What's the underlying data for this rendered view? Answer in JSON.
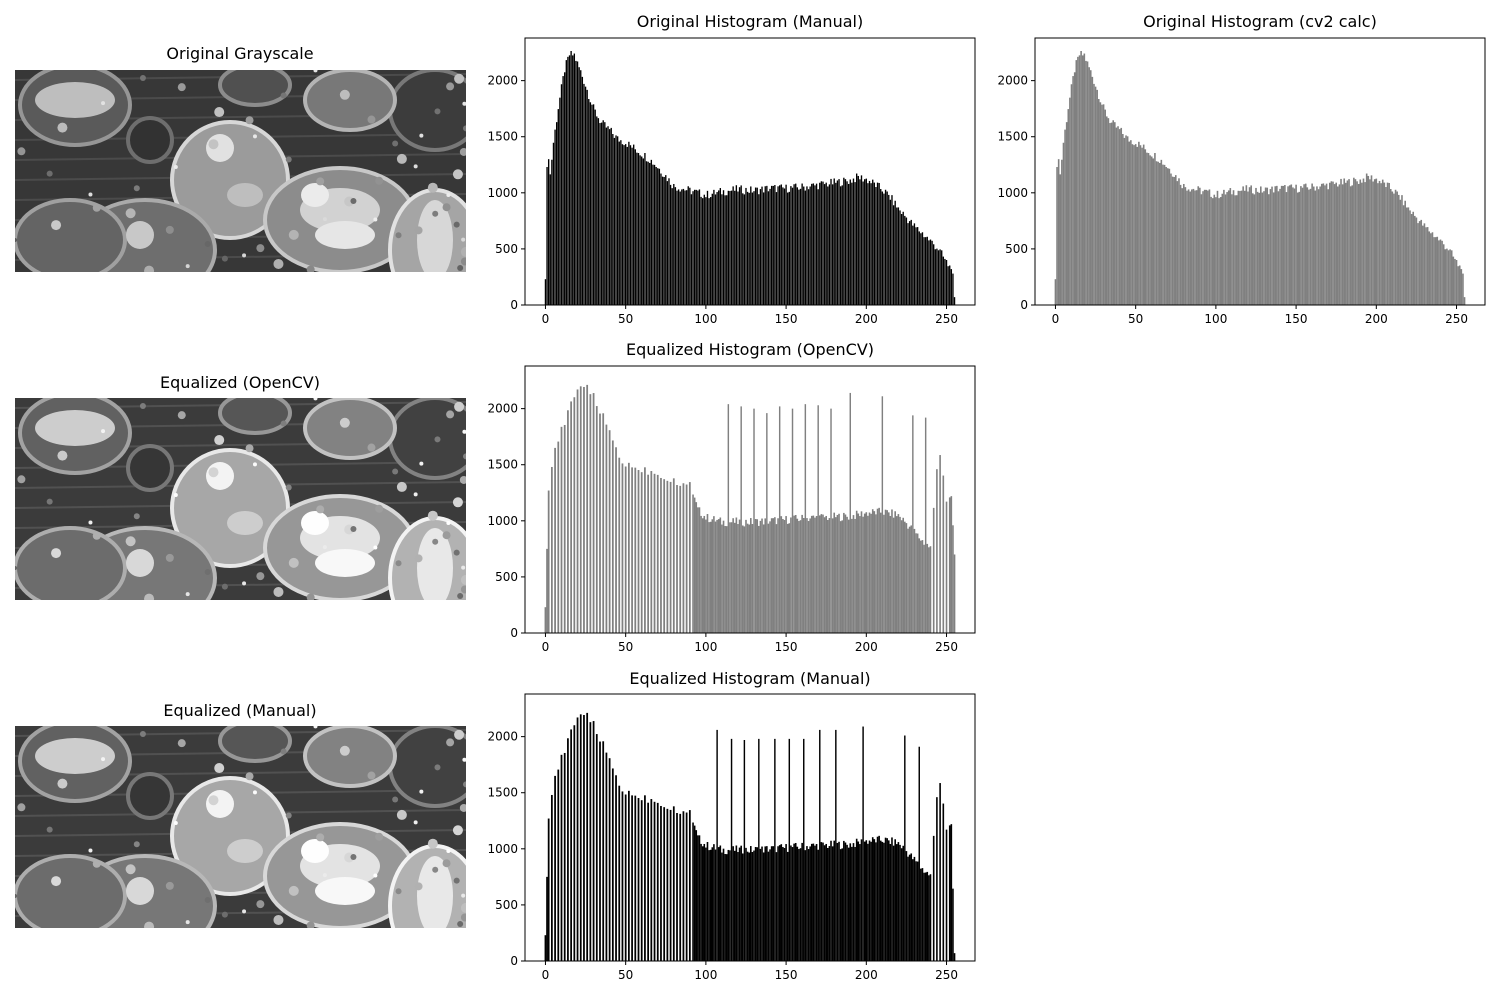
{
  "figure": {
    "images": [
      {
        "title": "Original Grayscale",
        "brightness": 1.0
      },
      {
        "title": "Equalized (OpenCV)",
        "brightness": 1.08
      },
      {
        "title": "Equalized (Manual)",
        "brightness": 1.08
      }
    ]
  },
  "chart_data": [
    {
      "type": "bar",
      "title": "Original Histogram (Manual)",
      "style": "separated-bars",
      "color": "#000000",
      "profile": "original",
      "x_range": [
        0,
        255
      ],
      "xlim": [
        -12.75,
        267.75
      ],
      "ylim": [
        0,
        2380
      ],
      "xticks": [
        "0",
        "50",
        "100",
        "150",
        "200",
        "250"
      ],
      "yticks": [
        "0",
        "500",
        "1000",
        "1500",
        "2000"
      ],
      "anchors": [
        [
          0,
          230
        ],
        [
          1,
          1230
        ],
        [
          2,
          1300
        ],
        [
          3,
          1160
        ],
        [
          5,
          1450
        ],
        [
          8,
          1760
        ],
        [
          12,
          2100
        ],
        [
          15,
          2230
        ],
        [
          18,
          2230
        ],
        [
          20,
          2150
        ],
        [
          22,
          2080
        ],
        [
          25,
          1960
        ],
        [
          30,
          1750
        ],
        [
          35,
          1620
        ],
        [
          40,
          1560
        ],
        [
          45,
          1480
        ],
        [
          50,
          1450
        ],
        [
          55,
          1400
        ],
        [
          60,
          1350
        ],
        [
          65,
          1300
        ],
        [
          70,
          1230
        ],
        [
          75,
          1150
        ],
        [
          80,
          1060
        ],
        [
          85,
          1040
        ],
        [
          90,
          1020
        ],
        [
          95,
          1000
        ],
        [
          100,
          980
        ],
        [
          110,
          1010
        ],
        [
          120,
          1030
        ],
        [
          130,
          1020
        ],
        [
          140,
          1040
        ],
        [
          150,
          1040
        ],
        [
          160,
          1050
        ],
        [
          170,
          1070
        ],
        [
          180,
          1090
        ],
        [
          190,
          1110
        ],
        [
          195,
          1140
        ],
        [
          200,
          1120
        ],
        [
          205,
          1080
        ],
        [
          210,
          1030
        ],
        [
          215,
          960
        ],
        [
          220,
          860
        ],
        [
          225,
          780
        ],
        [
          230,
          700
        ],
        [
          235,
          640
        ],
        [
          240,
          570
        ],
        [
          245,
          500
        ],
        [
          250,
          380
        ],
        [
          253,
          320
        ],
        [
          254,
          280
        ],
        [
          255,
          70
        ]
      ]
    },
    {
      "type": "bar",
      "title": "Original Histogram (cv2 calc)",
      "style": "filled",
      "color": "#808080",
      "profile": "original",
      "x_range": [
        0,
        255
      ],
      "xlim": [
        -12.75,
        267.75
      ],
      "ylim": [
        0,
        2380
      ],
      "xticks": [
        "0",
        "50",
        "100",
        "150",
        "200",
        "250"
      ],
      "yticks": [
        "0",
        "500",
        "1000",
        "1500",
        "2000"
      ],
      "anchors": [
        [
          0,
          230
        ],
        [
          1,
          1230
        ],
        [
          2,
          1300
        ],
        [
          3,
          1160
        ],
        [
          5,
          1450
        ],
        [
          8,
          1760
        ],
        [
          12,
          2100
        ],
        [
          15,
          2230
        ],
        [
          18,
          2230
        ],
        [
          20,
          2150
        ],
        [
          22,
          2080
        ],
        [
          25,
          1960
        ],
        [
          30,
          1750
        ],
        [
          35,
          1620
        ],
        [
          40,
          1560
        ],
        [
          45,
          1480
        ],
        [
          50,
          1450
        ],
        [
          55,
          1400
        ],
        [
          60,
          1350
        ],
        [
          65,
          1300
        ],
        [
          70,
          1230
        ],
        [
          75,
          1150
        ],
        [
          80,
          1060
        ],
        [
          85,
          1040
        ],
        [
          90,
          1020
        ],
        [
          95,
          1000
        ],
        [
          100,
          980
        ],
        [
          110,
          1010
        ],
        [
          120,
          1030
        ],
        [
          130,
          1020
        ],
        [
          140,
          1040
        ],
        [
          150,
          1040
        ],
        [
          160,
          1050
        ],
        [
          170,
          1070
        ],
        [
          180,
          1090
        ],
        [
          190,
          1110
        ],
        [
          195,
          1140
        ],
        [
          200,
          1120
        ],
        [
          205,
          1080
        ],
        [
          210,
          1030
        ],
        [
          215,
          960
        ],
        [
          220,
          860
        ],
        [
          225,
          780
        ],
        [
          230,
          700
        ],
        [
          235,
          640
        ],
        [
          240,
          570
        ],
        [
          245,
          500
        ],
        [
          250,
          380
        ],
        [
          253,
          320
        ],
        [
          254,
          280
        ],
        [
          255,
          70
        ]
      ]
    },
    {
      "type": "bar",
      "title": "Equalized Histogram (OpenCV)",
      "style": "equalized",
      "color": "#808080",
      "profile": "equalized",
      "x_range": [
        0,
        255
      ],
      "xlim": [
        -12.75,
        267.75
      ],
      "ylim": [
        0,
        2380
      ],
      "xticks": [
        "0",
        "50",
        "100",
        "150",
        "200",
        "250"
      ],
      "yticks": [
        "0",
        "500",
        "1000",
        "1500",
        "2000"
      ],
      "spikes": [
        [
          114,
          2040
        ],
        [
          122,
          2020
        ],
        [
          130,
          2000
        ],
        [
          138,
          1960
        ],
        [
          146,
          2020
        ],
        [
          154,
          2000
        ],
        [
          162,
          2040
        ],
        [
          170,
          2030
        ],
        [
          178,
          2000
        ],
        [
          190,
          2140
        ],
        [
          210,
          2110
        ],
        [
          229,
          1940
        ],
        [
          237,
          1920
        ]
      ],
      "anchors": [
        [
          0,
          230
        ],
        [
          2,
          1270
        ],
        [
          5,
          1600
        ],
        [
          10,
          1800
        ],
        [
          15,
          2000
        ],
        [
          20,
          2150
        ],
        [
          25,
          2240
        ],
        [
          30,
          2100
        ],
        [
          35,
          1950
        ],
        [
          40,
          1800
        ],
        [
          45,
          1600
        ],
        [
          50,
          1500
        ],
        [
          60,
          1460
        ],
        [
          70,
          1420
        ],
        [
          80,
          1360
        ],
        [
          90,
          1320
        ],
        [
          95,
          1100
        ],
        [
          100,
          1030
        ],
        [
          110,
          990
        ],
        [
          130,
          990
        ],
        [
          150,
          1010
        ],
        [
          170,
          1030
        ],
        [
          190,
          1040
        ],
        [
          200,
          1070
        ],
        [
          210,
          1080
        ],
        [
          220,
          1050
        ],
        [
          225,
          980
        ],
        [
          230,
          900
        ],
        [
          235,
          820
        ],
        [
          240,
          760
        ],
        [
          245,
          1650
        ],
        [
          248,
          1400
        ],
        [
          250,
          1150
        ],
        [
          253,
          1220
        ],
        [
          255,
          700
        ]
      ]
    },
    {
      "type": "bar",
      "title": "Equalized Histogram (Manual)",
      "style": "equalized",
      "color": "#000000",
      "profile": "equalized",
      "x_range": [
        0,
        255
      ],
      "xlim": [
        -12.75,
        267.75
      ],
      "ylim": [
        0,
        2380
      ],
      "xticks": [
        "0",
        "50",
        "100",
        "150",
        "200",
        "250"
      ],
      "yticks": [
        "0",
        "500",
        "1000",
        "1500",
        "2000"
      ],
      "spikes": [
        [
          107,
          2060
        ],
        [
          116,
          1980
        ],
        [
          124,
          1970
        ],
        [
          133,
          1980
        ],
        [
          143,
          1980
        ],
        [
          152,
          1980
        ],
        [
          161,
          1980
        ],
        [
          171,
          2060
        ],
        [
          181,
          2060
        ],
        [
          198,
          2090
        ],
        [
          224,
          2010
        ],
        [
          233,
          1910
        ]
      ],
      "anchors": [
        [
          0,
          230
        ],
        [
          2,
          1270
        ],
        [
          5,
          1600
        ],
        [
          10,
          1800
        ],
        [
          15,
          2000
        ],
        [
          20,
          2150
        ],
        [
          25,
          2240
        ],
        [
          30,
          2100
        ],
        [
          35,
          1950
        ],
        [
          40,
          1800
        ],
        [
          45,
          1600
        ],
        [
          50,
          1500
        ],
        [
          60,
          1460
        ],
        [
          70,
          1420
        ],
        [
          80,
          1360
        ],
        [
          90,
          1320
        ],
        [
          95,
          1100
        ],
        [
          100,
          1030
        ],
        [
          110,
          990
        ],
        [
          130,
          990
        ],
        [
          150,
          1010
        ],
        [
          170,
          1030
        ],
        [
          190,
          1040
        ],
        [
          200,
          1070
        ],
        [
          210,
          1080
        ],
        [
          220,
          1050
        ],
        [
          225,
          980
        ],
        [
          230,
          900
        ],
        [
          235,
          820
        ],
        [
          240,
          760
        ],
        [
          245,
          1650
        ],
        [
          248,
          1400
        ],
        [
          250,
          1150
        ],
        [
          253,
          1220
        ],
        [
          255,
          70
        ]
      ]
    }
  ]
}
